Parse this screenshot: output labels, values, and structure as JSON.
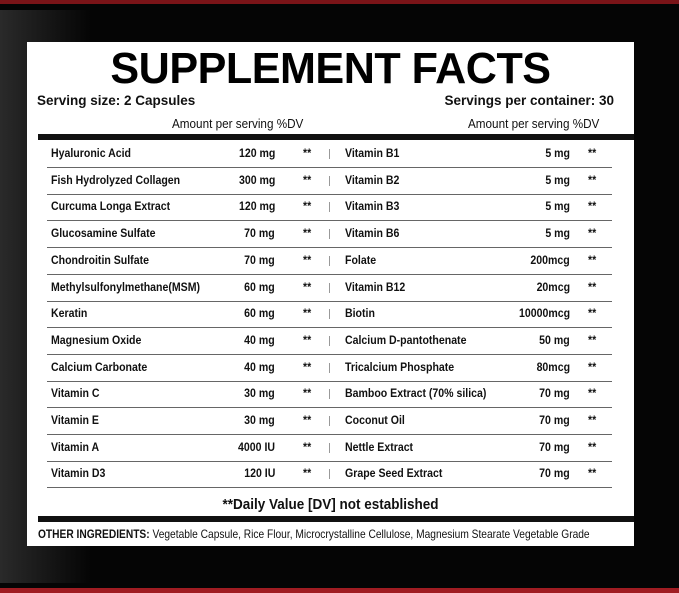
{
  "title": "SUPPLEMENT FACTS",
  "serving_size": "Serving size: 2 Capsules",
  "servings_per_container": "Servings per container: 30",
  "amount_header": "Amount per serving %DV",
  "left_column": [
    {
      "name": "Hyaluronic Acid",
      "amount": "120 mg",
      "dv": "**"
    },
    {
      "name": "Fish Hydrolyzed Collagen",
      "amount": "300 mg",
      "dv": "**"
    },
    {
      "name": "Curcuma Longa Extract",
      "amount": "120 mg",
      "dv": "**"
    },
    {
      "name": "Glucosamine Sulfate",
      "amount": "70 mg",
      "dv": "**"
    },
    {
      "name": "Chondroitin Sulfate",
      "amount": "70 mg",
      "dv": "**"
    },
    {
      "name": "Methylsulfonylmethane(MSM)",
      "amount": "60 mg",
      "dv": "**"
    },
    {
      "name": "Keratin",
      "amount": "60 mg",
      "dv": "**"
    },
    {
      "name": "Magnesium Oxide",
      "amount": "40 mg",
      "dv": "**"
    },
    {
      "name": "Calcium Carbonate",
      "amount": "40 mg",
      "dv": "**"
    },
    {
      "name": "Vitamin C",
      "amount": "30 mg",
      "dv": "**"
    },
    {
      "name": "Vitamin E",
      "amount": "30 mg",
      "dv": "**"
    },
    {
      "name": "Vitamin A",
      "amount": "4000 IU",
      "dv": "**"
    },
    {
      "name": "Vitamin D3",
      "amount": "120 IU",
      "dv": "**"
    }
  ],
  "right_column": [
    {
      "name": "Vitamin B1",
      "amount": "5 mg",
      "dv": "**"
    },
    {
      "name": "Vitamin B2",
      "amount": "5 mg",
      "dv": "**"
    },
    {
      "name": "Vitamin B3",
      "amount": "5 mg",
      "dv": "**"
    },
    {
      "name": "Vitamin B6",
      "amount": "5 mg",
      "dv": "**"
    },
    {
      "name": "Folate",
      "amount": "200mcg",
      "dv": "**"
    },
    {
      "name": "Vitamin B12",
      "amount": "20mcg",
      "dv": "**"
    },
    {
      "name": "Biotin",
      "amount": "10000mcg",
      "dv": "**"
    },
    {
      "name": "Calcium D-pantothenate",
      "amount": "50 mg",
      "dv": "**"
    },
    {
      "name": "Tricalcium Phosphate",
      "amount": "80mcg",
      "dv": "**"
    },
    {
      "name": "Bamboo Extract (70% silica)",
      "amount": "70 mg",
      "dv": "**"
    },
    {
      "name": "Coconut Oil",
      "amount": "70 mg",
      "dv": "**"
    },
    {
      "name": "Nettle Extract",
      "amount": "70 mg",
      "dv": "**"
    },
    {
      "name": "Grape Seed Extract",
      "amount": "70 mg",
      "dv": "**"
    }
  ],
  "footnote": "**Daily Value [DV] not established",
  "other_ingredients_label": "OTHER INGREDIENTS:",
  "other_ingredients": " Vegetable Capsule, Rice Flour, Microcrystalline Cellulose, Magnesium Stearate Vegetable Grade",
  "colors": {
    "background": "#050505",
    "accent_red": "#a01c22",
    "panel": "#ffffff"
  }
}
